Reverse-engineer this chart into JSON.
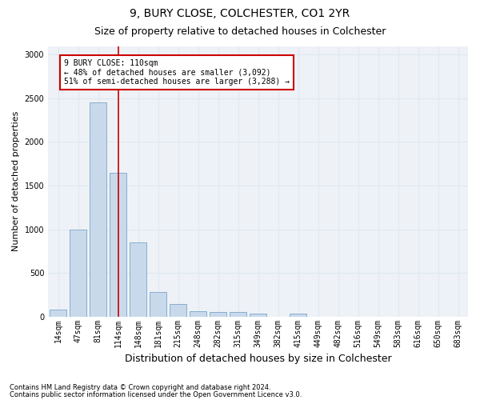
{
  "title1": "9, BURY CLOSE, COLCHESTER, CO1 2YR",
  "title2": "Size of property relative to detached houses in Colchester",
  "xlabel": "Distribution of detached houses by size in Colchester",
  "ylabel": "Number of detached properties",
  "categories": [
    "14sqm",
    "47sqm",
    "81sqm",
    "114sqm",
    "148sqm",
    "181sqm",
    "215sqm",
    "248sqm",
    "282sqm",
    "315sqm",
    "349sqm",
    "382sqm",
    "415sqm",
    "449sqm",
    "482sqm",
    "516sqm",
    "549sqm",
    "583sqm",
    "616sqm",
    "650sqm",
    "683sqm"
  ],
  "values": [
    75,
    1000,
    2450,
    1650,
    850,
    280,
    140,
    60,
    50,
    50,
    30,
    0,
    30,
    0,
    0,
    0,
    0,
    0,
    0,
    0,
    0
  ],
  "bar_color": "#c9d9ec",
  "bar_edge_color": "#7aa6c8",
  "grid_color": "#dce6f0",
  "vline_color": "#cc0000",
  "vline_x_index": 3,
  "annotation_line1": "9 BURY CLOSE: 110sqm",
  "annotation_line2": "← 48% of detached houses are smaller (3,092)",
  "annotation_line3": "51% of semi-detached houses are larger (3,288) →",
  "annotation_box_color": "#ffffff",
  "annotation_box_edge": "#cc0000",
  "ylim": [
    0,
    3100
  ],
  "yticks": [
    0,
    500,
    1000,
    1500,
    2000,
    2500,
    3000
  ],
  "footnote1": "Contains HM Land Registry data © Crown copyright and database right 2024.",
  "footnote2": "Contains public sector information licensed under the Open Government Licence v3.0.",
  "bg_color": "#eef2f7",
  "title1_fontsize": 10,
  "title2_fontsize": 9,
  "xlabel_fontsize": 9,
  "ylabel_fontsize": 8,
  "tick_fontsize": 7,
  "annot_fontsize": 7,
  "footnote_fontsize": 6
}
